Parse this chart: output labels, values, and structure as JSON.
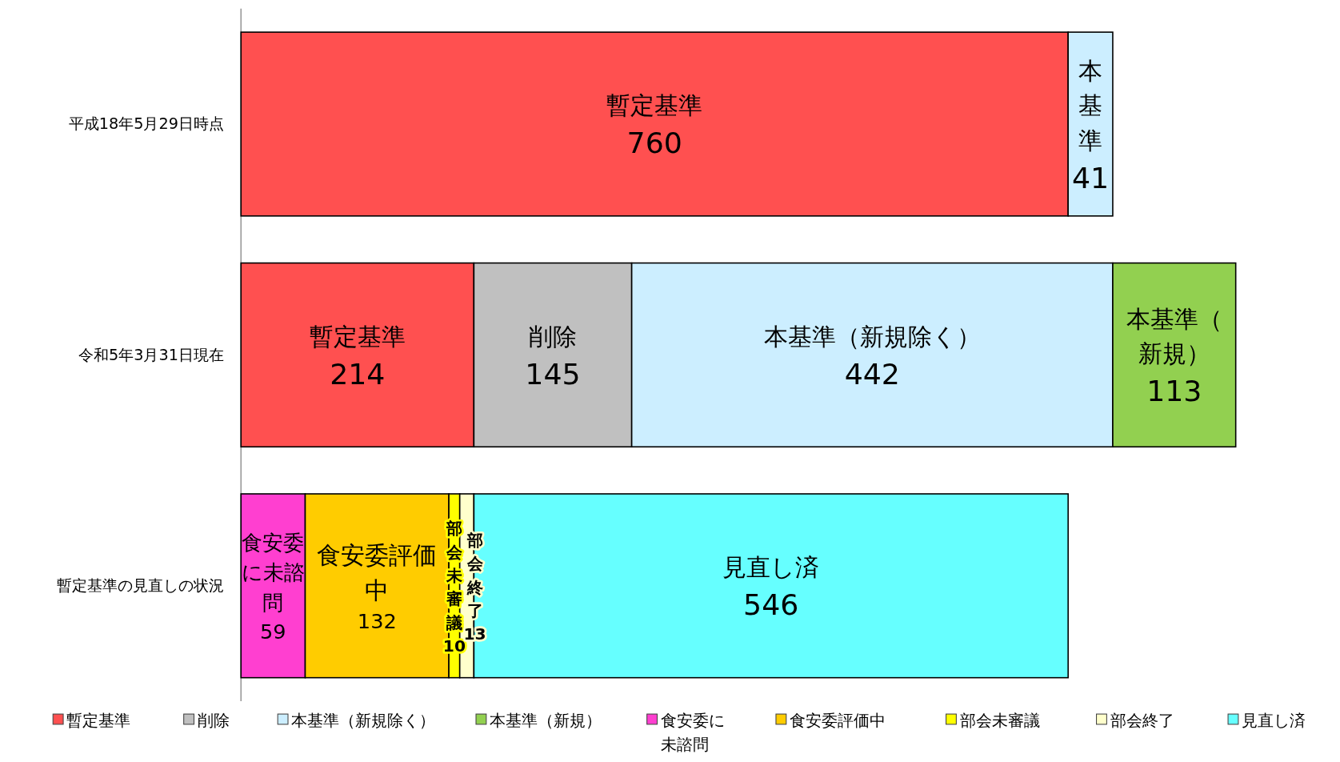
{
  "chart_data": {
    "type": "bar",
    "orientation": "horizontal",
    "stacked": true,
    "data_labels": true,
    "legend": "bottom",
    "categories": [
      "平成18年5月29日時点",
      "令和5年3月31日現在",
      "暫定基準の見直しの状況"
    ],
    "series": [
      {
        "name": "暫定基準",
        "color": "#ff5050",
        "values": [
          760,
          214,
          null
        ]
      },
      {
        "name": "削除",
        "color": "#c0c0c0",
        "values": [
          null,
          145,
          null
        ]
      },
      {
        "name": "本基準（新規除く）",
        "color": "#cceeff",
        "values": [
          41,
          442,
          null
        ]
      },
      {
        "name": "本基準（新規）",
        "color": "#92d050",
        "values": [
          null,
          113,
          null
        ]
      },
      {
        "name": "食安委に未諮問",
        "color": "#ff3fd0",
        "values": [
          null,
          null,
          59
        ]
      },
      {
        "name": "食安委評価中",
        "color": "#ffcc00",
        "values": [
          null,
          null,
          132
        ]
      },
      {
        "name": "部会未審議",
        "color": "#ffff00",
        "values": [
          null,
          null,
          10
        ]
      },
      {
        "name": "部会終了",
        "color": "#ffffcc",
        "values": [
          null,
          null,
          13
        ]
      },
      {
        "name": "見直し済",
        "color": "#66ffff",
        "values": [
          null,
          null,
          546
        ]
      }
    ],
    "annotations": [
      "暫定基準",
      "暫定基準",
      "削除",
      "本基準",
      "本基準（新規除く）",
      "本基準（新規）",
      "食安委に未諮問",
      "食安委評価中",
      "部会未審議",
      "部会終了",
      "見直し済"
    ]
  }
}
